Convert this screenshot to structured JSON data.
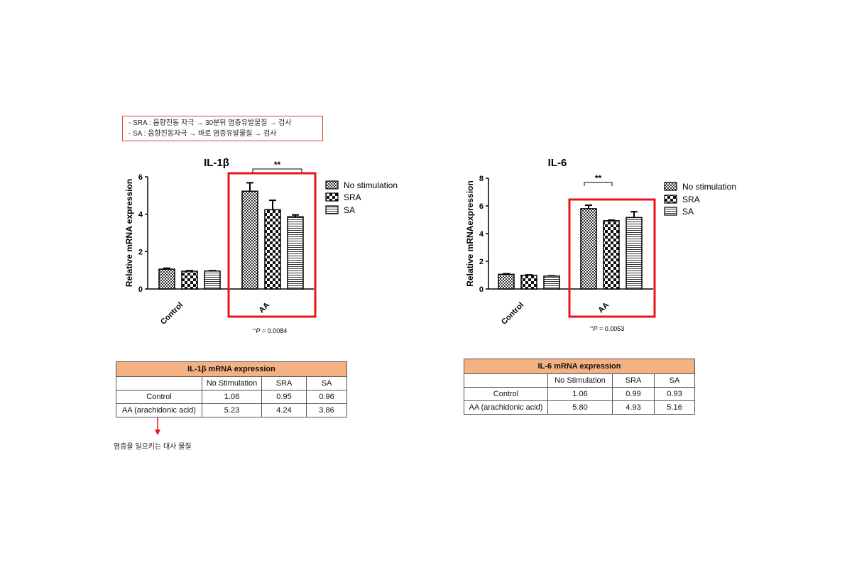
{
  "note": {
    "lines": [
      "-   SRA : 음향진동 자극 → 30분뒤 염증유발물질  → 검사",
      "-   SA : 음향진동자극  →  바로 염증유발물질  → 검사"
    ]
  },
  "chart_data": [
    {
      "type": "bar",
      "title": "IL-1β",
      "ylabel": "Relative mRNA expression",
      "xlabel": "",
      "categories": [
        "Control",
        "AA"
      ],
      "ylim": [
        0,
        6
      ],
      "yticks": [
        "0",
        "2",
        "4",
        "6"
      ],
      "series": [
        {
          "name": "No stimulation",
          "pattern": "fine-check",
          "values": [
            1.06,
            5.23
          ],
          "errors": [
            0.05,
            0.45
          ]
        },
        {
          "name": "SRA",
          "pattern": "coarse-check",
          "values": [
            0.95,
            4.24
          ],
          "errors": [
            0.03,
            0.5
          ]
        },
        {
          "name": "SA",
          "pattern": "horizontal-lines",
          "values": [
            0.96,
            3.86
          ],
          "errors": [
            0.02,
            0.1
          ]
        }
      ],
      "significance": "**",
      "p_value_prefix": "**",
      "p_value_label": "P",
      "p_value_text": " = 0.0084",
      "highlight_category": "AA",
      "highlight_color": "#e8141c",
      "legend_position": "right"
    },
    {
      "type": "bar",
      "title": "IL-6",
      "ylabel": "Relative mRNAexpression",
      "xlabel": "",
      "categories": [
        "Control",
        "AA"
      ],
      "ylim": [
        0,
        8
      ],
      "yticks": [
        "0",
        "2",
        "4",
        "6",
        "8"
      ],
      "series": [
        {
          "name": "No stimulation",
          "pattern": "fine-check",
          "values": [
            1.06,
            5.8
          ],
          "errors": [
            0.04,
            0.25
          ]
        },
        {
          "name": "SRA",
          "pattern": "coarse-check",
          "values": [
            0.99,
            4.93
          ],
          "errors": [
            0.03,
            0.04
          ]
        },
        {
          "name": "SA",
          "pattern": "horizontal-lines",
          "values": [
            0.93,
            5.16
          ],
          "errors": [
            0.02,
            0.42
          ]
        }
      ],
      "significance": "**",
      "p_value_prefix": "**",
      "p_value_label": "P",
      "p_value_text": " = 0.0053",
      "highlight_category": "AA",
      "highlight_color": "#e8141c",
      "legend_position": "right"
    }
  ],
  "tables": [
    {
      "title": "IL-1β mRNA expression",
      "header_color": "#f4b183",
      "columns": [
        "",
        "No Stimulation",
        "SRA",
        "SA"
      ],
      "rows": [
        [
          "Control",
          "1.06",
          "0.95",
          "0.96"
        ],
        [
          "AA (arachidonic acid)",
          "5.23",
          "4.24",
          "3.86"
        ]
      ]
    },
    {
      "title": "IL-6 mRNA expression",
      "header_color": "#f4b183",
      "columns": [
        "",
        "No Stimulation",
        "SRA",
        "SA"
      ],
      "rows": [
        [
          "Control",
          "1.06",
          "0.99",
          "0.93"
        ],
        [
          "AA (arachidonic acid)",
          "5.80",
          "4.93",
          "5.16"
        ]
      ]
    }
  ],
  "annotation": {
    "arrow_color": "#e8141c",
    "text": "염증을 일으키는 대사 물질"
  }
}
